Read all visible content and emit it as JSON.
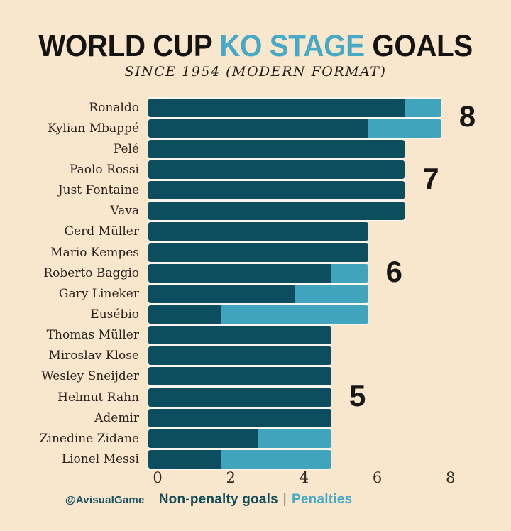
{
  "title": {
    "part1": "WORLD CUP ",
    "accent": "KO STAGE",
    "part2": " GOALS"
  },
  "subtitle": "SINCE 1954 (MODERN FORMAT)",
  "watermark": "@AvisualGame",
  "legend": {
    "nonpenalty_label": "Non-penalty goals",
    "separator": "|",
    "penalties_label": "Penalties"
  },
  "colors": {
    "background": "#f8e7cc",
    "non_penalty_bar": "#0d4e5e",
    "penalty_bar": "#41a4bd",
    "title_accent": "#47a9c5",
    "title_text": "#161412",
    "label_text": "#2a2119",
    "annotation_text": "#191715"
  },
  "chart_data": {
    "type": "bar",
    "orientation": "horizontal",
    "stacked": true,
    "title": "WORLD CUP KO STAGE GOALS",
    "subtitle": "SINCE 1954 (MODERN FORMAT)",
    "xlabel": "",
    "ylabel": "",
    "xlim": [
      0,
      8.6
    ],
    "x_ticks": [
      0,
      2,
      4,
      6,
      8
    ],
    "grid_ticks": [
      2,
      4,
      6,
      8
    ],
    "legend_position": "bottom",
    "categories": [
      "Ronaldo",
      "Kylian Mbappé",
      "Pelé",
      "Paolo Rossi",
      "Just Fontaine",
      "Vava",
      "Gerd Müller",
      "Mario Kempes",
      "Roberto Baggio",
      "Gary Lineker",
      "Eusébio",
      "Thomas Müller",
      "Miroslav Klose",
      "Wesley Sneijder",
      "Helmut Rahn",
      "Ademir",
      "Zinedine Zidane",
      "Lionel Messi"
    ],
    "series": [
      {
        "name": "Non-penalty goals",
        "values": [
          7,
          6,
          7,
          7,
          7,
          7,
          6,
          6,
          5,
          4,
          2,
          5,
          5,
          5,
          5,
          5,
          3,
          2
        ]
      },
      {
        "name": "Penalties",
        "values": [
          1,
          2,
          0,
          0,
          0,
          0,
          0,
          0,
          1,
          2,
          4,
          0,
          0,
          0,
          0,
          0,
          2,
          3
        ]
      }
    ],
    "totals": [
      8,
      8,
      7,
      7,
      7,
      7,
      6,
      6,
      6,
      6,
      6,
      5,
      5,
      5,
      5,
      5,
      5,
      5
    ],
    "group_annotations": [
      {
        "total": 8,
        "from_row": 0,
        "to_row": 1
      },
      {
        "total": 7,
        "from_row": 2,
        "to_row": 5
      },
      {
        "total": 6,
        "from_row": 6,
        "to_row": 10
      },
      {
        "total": 5,
        "from_row": 11,
        "to_row": 17
      }
    ]
  }
}
